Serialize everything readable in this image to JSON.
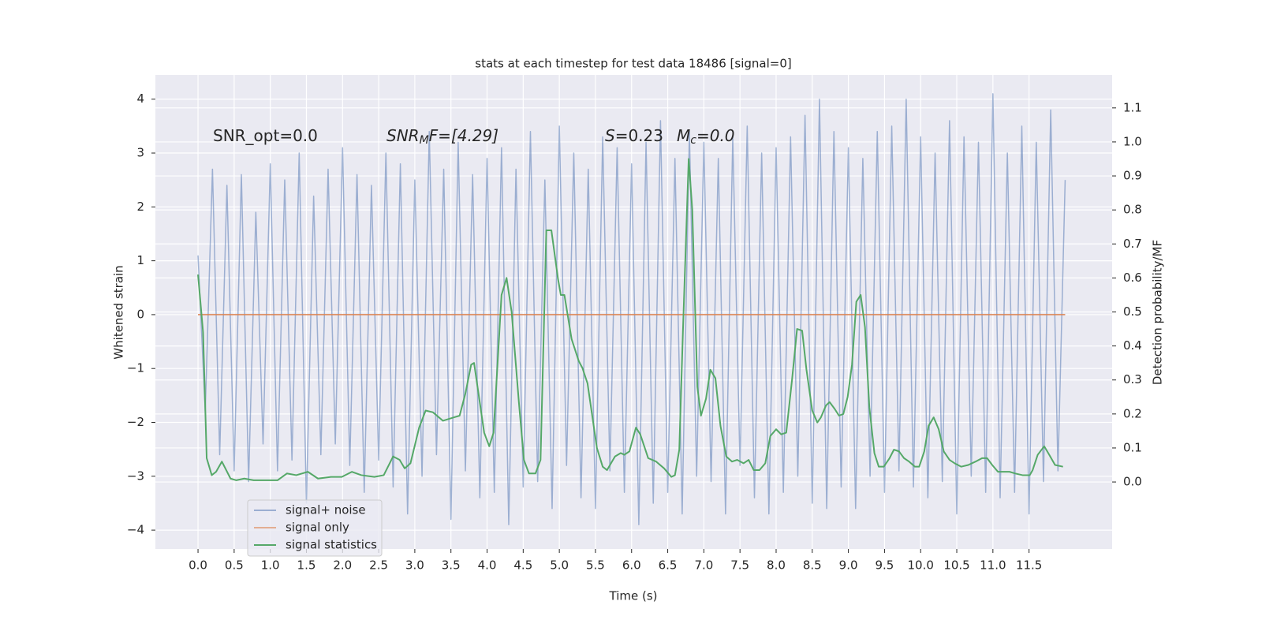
{
  "chart_data": {
    "type": "line",
    "title": "stats at each timestep for test data 18486 [signal=0]",
    "xlabel": "Time (s)",
    "ylabel": "Whitened strain",
    "y2label": "Detection probability/MF",
    "annotations": [
      {
        "text": "SNR_opt=0.0"
      },
      {
        "math": "SNR",
        "sub": "M",
        "rest": "F=[4.29]"
      },
      {
        "math": "S",
        "rest": "=0.23"
      },
      {
        "math": "M",
        "sub": "c",
        "rest": "=0.0"
      }
    ],
    "xlim": [
      -0.59,
      12.65
    ],
    "ylim": [
      -4.35,
      4.45
    ],
    "y2lim": [
      -0.197,
      1.197
    ],
    "xticks": [
      {
        "value": 0,
        "label": "0.0"
      },
      0.5,
      {
        "value": 1,
        "label": "1.0"
      },
      1.5,
      {
        "value": 2,
        "label": "2.0"
      },
      2.5,
      {
        "value": 3,
        "label": "3.0"
      },
      3.5,
      {
        "value": 4,
        "label": "4.0"
      },
      4.5,
      {
        "value": 5,
        "label": "5.0"
      },
      5.5,
      {
        "value": 6,
        "label": "6.0"
      },
      6.5,
      {
        "value": 7,
        "label": "7.0"
      },
      7.5,
      {
        "value": 8,
        "label": "8.0"
      },
      8.5,
      {
        "value": 9,
        "label": "9.0"
      },
      9.5,
      {
        "value": 10,
        "label": "10.0"
      },
      10.5,
      {
        "value": 11,
        "label": "11.0"
      },
      11.5
    ],
    "yticks": [
      {
        "value": -4,
        "label": "−4"
      },
      {
        "value": -3,
        "label": "−3"
      },
      {
        "value": -2,
        "label": "−2"
      },
      {
        "value": -1,
        "label": "−1"
      },
      0,
      1,
      2,
      3,
      4
    ],
    "y2ticks": [
      {
        "value": 0,
        "label": "0.0"
      },
      0.1,
      0.2,
      0.3,
      0.4,
      0.5,
      0.6,
      0.7,
      0.8,
      0.9,
      {
        "value": 1,
        "label": "1.0"
      },
      1.1
    ],
    "grid": true,
    "legend": "lower left",
    "series": [
      {
        "name": "signal+ noise",
        "color": "#4c72b0",
        "x": [
          0,
          0.1,
          0.2,
          0.3,
          0.4,
          0.5,
          0.6,
          0.7,
          0.8,
          0.9,
          1,
          1.1,
          1.2,
          1.3,
          1.4,
          1.5,
          1.6,
          1.7,
          1.8,
          1.9,
          2,
          2.1,
          2.2,
          2.3,
          2.4,
          2.5,
          2.6,
          2.7,
          2.8,
          2.9,
          3,
          3.1,
          3.2,
          3.3,
          3.4,
          3.5,
          3.6,
          3.7,
          3.8,
          3.9,
          4,
          4.1,
          4.2,
          4.3,
          4.4,
          4.5,
          4.6,
          4.7,
          4.8,
          4.9,
          5,
          5.1,
          5.2,
          5.3,
          5.4,
          5.5,
          5.6,
          5.7,
          5.8,
          5.9,
          6,
          6.1,
          6.2,
          6.3,
          6.4,
          6.5,
          6.6,
          6.7,
          6.8,
          6.9,
          7,
          7.1,
          7.2,
          7.3,
          7.4,
          7.5,
          7.6,
          7.7,
          7.8,
          7.9,
          8,
          8.1,
          8.2,
          8.3,
          8.4,
          8.5,
          8.6,
          8.7,
          8.8,
          8.9,
          9,
          9.1,
          9.2,
          9.3,
          9.4,
          9.5,
          9.6,
          9.7,
          9.8,
          9.9,
          10,
          10.1,
          10.2,
          10.3,
          10.4,
          10.5,
          10.6,
          10.7,
          10.8,
          10.9,
          11,
          11.1,
          11.2,
          11.3,
          11.4,
          11.5,
          11.6,
          11.7,
          11.8,
          11.9,
          12
        ],
        "values": [
          1.1,
          -1.8,
          2.7,
          -2.6,
          2.4,
          -2.9,
          2.6,
          -3.1,
          1.9,
          -2.4,
          2.8,
          -2.9,
          2.5,
          -2.7,
          3.0,
          -3.5,
          2.2,
          -2.6,
          2.7,
          -2.4,
          3.1,
          -2.8,
          2.6,
          -3.3,
          2.4,
          -2.7,
          3.0,
          -3.2,
          2.8,
          -3.7,
          2.5,
          -3.0,
          3.4,
          -2.6,
          2.7,
          -3.8,
          3.2,
          -2.9,
          2.6,
          -3.4,
          2.9,
          -3.3,
          3.1,
          -3.9,
          2.7,
          -3.2,
          3.4,
          -3.1,
          2.5,
          -3.6,
          3.5,
          -2.8,
          3.0,
          -3.4,
          2.7,
          -3.6,
          3.3,
          -2.9,
          3.1,
          -3.3,
          2.8,
          -3.9,
          3.2,
          -3.5,
          3.6,
          -3.3,
          2.9,
          -3.7,
          3.4,
          -3.0,
          3.2,
          -3.1,
          2.9,
          -3.7,
          3.3,
          -2.8,
          3.5,
          -3.4,
          3.0,
          -3.7,
          3.1,
          -3.3,
          3.3,
          -3.0,
          3.7,
          -3.5,
          4.0,
          -3.6,
          3.4,
          -3.2,
          3.1,
          -3.6,
          2.9,
          -3.0,
          3.4,
          -3.3,
          3.5,
          -2.9,
          4.0,
          -3.2,
          3.3,
          -3.4,
          3.0,
          -3.1,
          3.6,
          -3.7,
          3.3,
          -3.0,
          3.2,
          -3.3,
          4.1,
          -3.4,
          3.0,
          -3.3,
          3.5,
          -3.7,
          3.2,
          -3.1,
          3.8,
          -2.9,
          2.5
        ]
      },
      {
        "name": "signal only",
        "color": "#dd8452",
        "x": [
          0,
          12
        ],
        "values": [
          0,
          0
        ]
      },
      {
        "name": "signal statistics",
        "color": "#55a868",
        "axis": "y2",
        "x": [
          0,
          0.07,
          0.12,
          0.19,
          0.25,
          0.33,
          0.45,
          0.53,
          0.64,
          0.77,
          0.97,
          1.1,
          1.23,
          1.36,
          1.52,
          1.66,
          1.84,
          1.99,
          2.13,
          2.26,
          2.44,
          2.57,
          2.7,
          2.79,
          2.86,
          2.94,
          3.06,
          3.15,
          3.25,
          3.39,
          3.54,
          3.62,
          3.7,
          3.78,
          3.82,
          3.96,
          4.03,
          4.09,
          4.2,
          4.27,
          4.34,
          4.44,
          4.51,
          4.58,
          4.67,
          4.74,
          4.82,
          4.89,
          4.98,
          5.02,
          5.07,
          5.17,
          5.27,
          5.32,
          5.39,
          5.52,
          5.6,
          5.66,
          5.77,
          5.85,
          5.9,
          5.97,
          6.06,
          6.12,
          6.23,
          6.34,
          6.45,
          6.55,
          6.6,
          6.66,
          6.71,
          6.79,
          6.84,
          6.91,
          6.96,
          7.03,
          7.09,
          7.16,
          7.23,
          7.31,
          7.39,
          7.46,
          7.55,
          7.62,
          7.69,
          7.77,
          7.85,
          7.92,
          8.0,
          8.07,
          8.14,
          8.22,
          8.29,
          8.36,
          8.42,
          8.5,
          8.57,
          8.62,
          8.69,
          8.74,
          8.81,
          8.87,
          8.93,
          8.99,
          9.05,
          9.11,
          9.17,
          9.23,
          9.29,
          9.36,
          9.42,
          9.49,
          9.57,
          9.63,
          9.7,
          9.77,
          9.84,
          9.92,
          9.98,
          10.05,
          10.11,
          10.18,
          10.25,
          10.32,
          10.4,
          10.47,
          10.56,
          10.66,
          10.76,
          10.85,
          10.92,
          10.99,
          11.07,
          11.14,
          11.23,
          11.31,
          11.41,
          11.51,
          11.55,
          11.62,
          11.71,
          11.78,
          11.86,
          11.97
        ],
        "values": [
          0.61,
          0.44,
          0.07,
          0.02,
          0.03,
          0.06,
          0.01,
          0.005,
          0.01,
          0.005,
          0.005,
          0.005,
          0.025,
          0.02,
          0.03,
          0.01,
          0.015,
          0.015,
          0.03,
          0.02,
          0.015,
          0.02,
          0.075,
          0.065,
          0.04,
          0.055,
          0.16,
          0.21,
          0.205,
          0.18,
          0.19,
          0.195,
          0.26,
          0.345,
          0.35,
          0.145,
          0.105,
          0.145,
          0.55,
          0.6,
          0.5,
          0.235,
          0.065,
          0.025,
          0.025,
          0.065,
          0.74,
          0.74,
          0.6,
          0.55,
          0.55,
          0.42,
          0.355,
          0.335,
          0.29,
          0.1,
          0.045,
          0.035,
          0.075,
          0.085,
          0.08,
          0.09,
          0.16,
          0.14,
          0.07,
          0.06,
          0.04,
          0.015,
          0.02,
          0.095,
          0.44,
          0.95,
          0.8,
          0.28,
          0.195,
          0.245,
          0.33,
          0.305,
          0.165,
          0.075,
          0.06,
          0.065,
          0.055,
          0.065,
          0.035,
          0.035,
          0.055,
          0.135,
          0.155,
          0.14,
          0.145,
          0.3,
          0.45,
          0.445,
          0.33,
          0.21,
          0.175,
          0.19,
          0.225,
          0.235,
          0.215,
          0.195,
          0.2,
          0.25,
          0.345,
          0.53,
          0.55,
          0.455,
          0.22,
          0.085,
          0.045,
          0.045,
          0.07,
          0.095,
          0.09,
          0.07,
          0.06,
          0.045,
          0.045,
          0.09,
          0.165,
          0.19,
          0.155,
          0.09,
          0.065,
          0.055,
          0.045,
          0.05,
          0.06,
          0.07,
          0.07,
          0.05,
          0.03,
          0.03,
          0.03,
          0.025,
          0.02,
          0.02,
          0.035,
          0.08,
          0.105,
          0.08,
          0.05,
          0.045
        ]
      }
    ]
  }
}
